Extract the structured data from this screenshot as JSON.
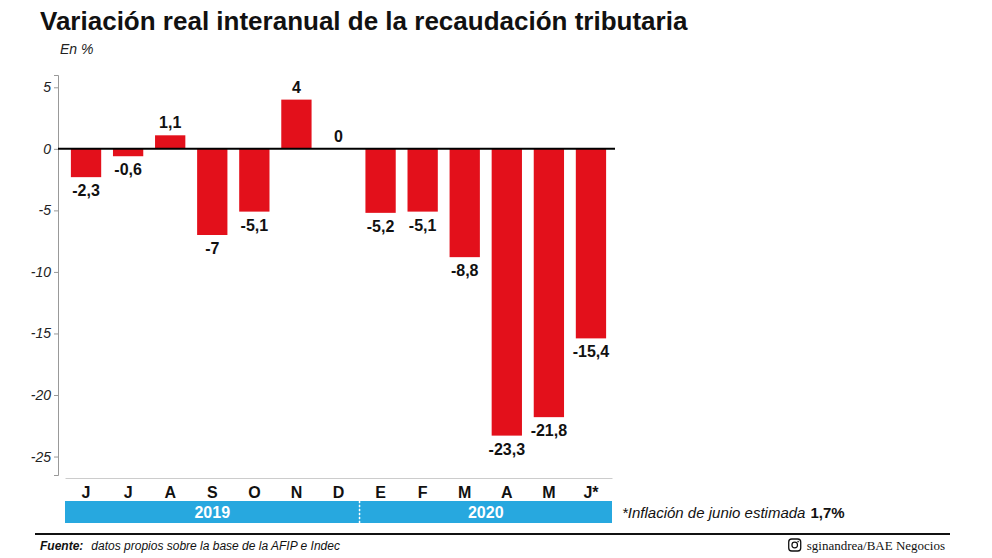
{
  "chart_data": {
    "type": "bar",
    "title": "Variación real interanual de la recaudación tributaria",
    "y_label": "En %",
    "categories": [
      "J",
      "J",
      "A",
      "S",
      "O",
      "N",
      "D",
      "E",
      "F",
      "M",
      "A",
      "M",
      "J*"
    ],
    "values": [
      -2.3,
      -0.6,
      1.1,
      -7,
      -5.1,
      4,
      0,
      -5.2,
      -5.1,
      -8.8,
      -23.3,
      -21.8,
      -15.4
    ],
    "value_labels": [
      "-2,3",
      "-0,6",
      "1,1",
      "-7",
      "-5,1",
      "4",
      "0",
      "-5,2",
      "-5,1",
      "-8,8",
      "-23,3",
      "-21,8",
      "-15,4"
    ],
    "color": "#e3101b",
    "ylim": [
      -26.5,
      6
    ],
    "yticks": [
      -25,
      -20,
      -15,
      -10,
      -5,
      0,
      5
    ],
    "grid": false,
    "data_labels": true,
    "x_groups": [
      {
        "label": "2019",
        "count": 7
      },
      {
        "label": "2020",
        "count": 6
      }
    ],
    "note": {
      "text": "*Inflación de junio estimada",
      "value_label": "1,7%"
    },
    "source_label": "Fuente:",
    "source": "datos propios sobre la base de la AFIP e Indec",
    "credit": "sginandrea/BAE Negocios"
  }
}
